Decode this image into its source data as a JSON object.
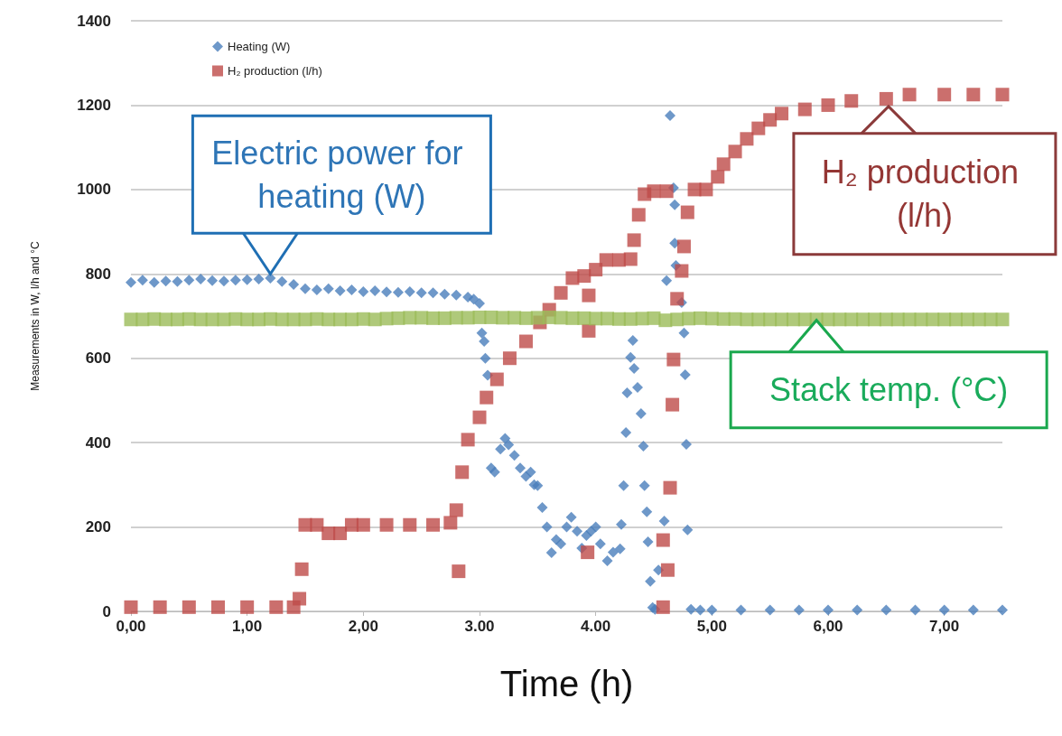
{
  "chart_data": {
    "type": "scatter",
    "xlabel": "Time (h)",
    "ylabel": "Measurements in W, l/h and °C",
    "xlim": [
      0,
      7.5
    ],
    "ylim": [
      0,
      1400
    ],
    "xticks": [
      {
        "value": 0,
        "label": "0,00"
      },
      {
        "value": 1,
        "label": "1,00"
      },
      {
        "value": 2,
        "label": "2,00"
      },
      {
        "value": 3,
        "label": "3.00"
      },
      {
        "value": 4,
        "label": "4.00"
      },
      {
        "value": 5,
        "label": "5,00"
      },
      {
        "value": 6,
        "label": "6,00"
      },
      {
        "value": 7,
        "label": "7,00"
      }
    ],
    "yticks": [
      0,
      200,
      400,
      600,
      800,
      1000,
      1200,
      1400
    ],
    "grid": "y",
    "legend": "top left",
    "annotations": [
      {
        "text": "Electric power for heating (W)",
        "x": 1.2,
        "y": 800
      },
      {
        "text": "H₂ production (l/h)",
        "x": 6.52,
        "y": 1197
      },
      {
        "text": "Stack temp. (°C)",
        "x": 5.9,
        "y": 690
      }
    ],
    "series": [
      {
        "name": "Heating (W)",
        "color": "#4a7ebb",
        "marker": "diamond",
        "x": [
          0,
          0.1,
          0.2,
          0.3,
          0.4,
          0.5,
          0.6,
          0.7,
          0.8,
          0.9,
          1.0,
          1.1,
          1.2,
          1.3,
          1.4,
          1.5,
          1.6,
          1.7,
          1.8,
          1.9,
          2.0,
          2.1,
          2.2,
          2.3,
          2.4,
          2.5,
          2.6,
          2.7,
          2.8,
          2.9,
          2.95,
          3.0,
          3.02,
          3.04,
          3.05,
          3.07,
          3.1,
          3.13,
          3.18,
          3.22,
          3.25,
          3.3,
          3.35,
          3.4,
          3.44,
          3.47,
          3.5,
          3.54,
          3.58,
          3.62,
          3.66,
          3.7,
          3.75,
          3.79,
          3.84,
          3.88,
          3.92,
          3.96,
          4.0,
          4.04,
          4.1,
          4.15,
          4.21,
          4.22,
          4.24,
          4.26,
          4.27,
          4.3,
          4.32,
          4.33,
          4.36,
          4.39,
          4.41,
          4.42,
          4.44,
          4.45,
          4.47,
          4.49,
          4.51,
          4.54,
          4.59,
          4.61,
          4.64,
          4.67,
          4.68,
          4.68,
          4.69,
          4.74,
          4.76,
          4.77,
          4.78,
          4.79,
          4.82,
          4.9,
          5.0,
          5.25,
          5.5,
          5.75,
          6.0,
          6.25,
          6.5,
          6.75,
          7.0,
          7.25,
          7.5
        ],
        "values": [
          780,
          785,
          780,
          783,
          782,
          785,
          788,
          784,
          783,
          785,
          786,
          788,
          790,
          782,
          775,
          765,
          762,
          765,
          760,
          762,
          758,
          760,
          757,
          756,
          758,
          755,
          755,
          752,
          750,
          745,
          740,
          730,
          660,
          640,
          600,
          560,
          340,
          330,
          385,
          410,
          395,
          370,
          340,
          320,
          330,
          300,
          298,
          246,
          200,
          139,
          170,
          160,
          200,
          223,
          190,
          150,
          180,
          190,
          200,
          160,
          120,
          140,
          148,
          206,
          298,
          424,
          518,
          602,
          642,
          576,
          531,
          469,
          392,
          298,
          236,
          165,
          71,
          9,
          5,
          98,
          214,
          784,
          1175,
          1004,
          964,
          873,
          820,
          732,
          660,
          561,
          396,
          193,
          5,
          3,
          3,
          3,
          3,
          3,
          3,
          3,
          3,
          3,
          3,
          3,
          3
        ]
      },
      {
        "name": "H₂ production (l/h)",
        "color": "#be4b48",
        "marker": "square",
        "x": [
          0,
          0.25,
          0.5,
          0.75,
          1.0,
          1.25,
          1.4,
          1.45,
          1.47,
          1.5,
          1.6,
          1.7,
          1.8,
          1.9,
          2.0,
          2.2,
          2.4,
          2.6,
          2.75,
          2.8,
          2.82,
          2.85,
          2.9,
          3.0,
          3.06,
          3.15,
          3.26,
          3.4,
          3.52,
          3.6,
          3.7,
          3.8,
          3.9,
          3.94,
          3.94,
          3.93,
          4.0,
          4.09,
          4.2,
          4.3,
          4.33,
          4.37,
          4.42,
          4.5,
          4.61,
          4.58,
          4.62,
          4.58,
          4.64,
          4.66,
          4.67,
          4.7,
          4.74,
          4.76,
          4.79,
          4.85,
          4.95,
          5.05,
          5.1,
          5.2,
          5.3,
          5.4,
          5.5,
          5.6,
          5.8,
          6.0,
          6.2,
          6.5,
          6.7,
          7.0,
          7.25,
          7.5
        ],
        "values": [
          10,
          10,
          10,
          10,
          10,
          10,
          10,
          30,
          100,
          205,
          205,
          185,
          185,
          205,
          205,
          205,
          205,
          205,
          210,
          240,
          95,
          330,
          407,
          460,
          507,
          550,
          600,
          640,
          685,
          715,
          755,
          790,
          795,
          749,
          665,
          140,
          810,
          833,
          833,
          835,
          880,
          940,
          989,
          996,
          996,
          169,
          98,
          10,
          293,
          490,
          597,
          741,
          807,
          865,
          946,
          1000,
          1000,
          1030,
          1060,
          1090,
          1120,
          1145,
          1165,
          1180,
          1190,
          1200,
          1210,
          1215,
          1225,
          1225,
          1225,
          1225
        ]
      },
      {
        "color": "#9bbb59",
        "marker": "square",
        "x": [
          0,
          0.1,
          0.2,
          0.3,
          0.4,
          0.5,
          0.6,
          0.7,
          0.8,
          0.9,
          1.0,
          1.1,
          1.2,
          1.3,
          1.4,
          1.5,
          1.6,
          1.7,
          1.8,
          1.9,
          2.0,
          2.1,
          2.2,
          2.3,
          2.4,
          2.5,
          2.6,
          2.7,
          2.8,
          2.9,
          3.0,
          3.1,
          3.2,
          3.3,
          3.4,
          3.5,
          3.6,
          3.7,
          3.8,
          3.9,
          4.0,
          4.1,
          4.2,
          4.3,
          4.4,
          4.5,
          4.6,
          4.7,
          4.8,
          4.9,
          5.0,
          5.1,
          5.2,
          5.3,
          5.4,
          5.5,
          5.6,
          5.7,
          5.8,
          5.9,
          6.0,
          6.1,
          6.2,
          6.3,
          6.4,
          6.5,
          6.6,
          6.7,
          6.8,
          6.9,
          7.0,
          7.1,
          7.2,
          7.3,
          7.4,
          7.5
        ],
        "values": [
          692,
          692,
          693,
          692,
          692,
          693,
          692,
          692,
          692,
          693,
          692,
          692,
          693,
          692,
          692,
          692,
          693,
          692,
          692,
          692,
          693,
          692,
          694,
          695,
          696,
          696,
          695,
          695,
          696,
          696,
          697,
          697,
          696,
          696,
          695,
          696,
          697,
          696,
          695,
          695,
          694,
          694,
          693,
          693,
          694,
          695,
          690,
          692,
          694,
          695,
          694,
          693,
          693,
          692,
          692,
          692,
          692,
          692,
          692,
          692,
          692,
          692,
          692,
          692,
          692,
          692,
          692,
          692,
          692,
          692,
          692,
          692,
          692,
          692,
          692,
          692
        ]
      }
    ]
  }
}
